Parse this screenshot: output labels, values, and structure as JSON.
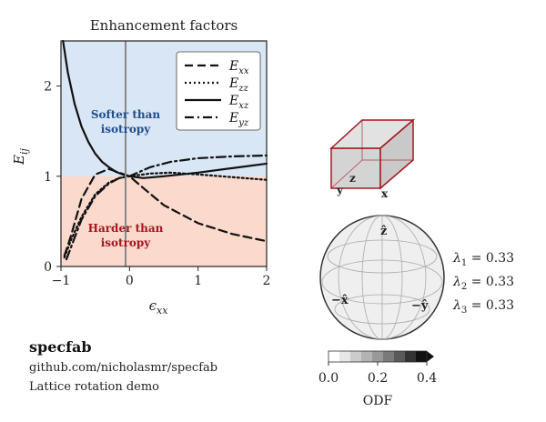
{
  "chart_data": {
    "type": "line",
    "title": "Enhancement factors",
    "xlabel": "ϵ_xx",
    "ylabel": "E_ij",
    "xlim": [
      -1,
      2
    ],
    "ylim": [
      0,
      2.5
    ],
    "xticks": [
      "−1",
      "0",
      "1",
      "2"
    ],
    "yticks": [
      "0",
      "1",
      "2"
    ],
    "legend_position": "top-right",
    "regions": [
      {
        "label": "Softer than isotropy",
        "y_range": [
          1,
          2.5
        ],
        "color": "#d9e6f5",
        "text_color": "#1f4e8c"
      },
      {
        "label": "Harder than isotropy",
        "y_range": [
          0,
          1
        ],
        "color": "#fbd9cc",
        "text_color": "#a31621"
      }
    ],
    "series": [
      {
        "name": "E_xx",
        "style": "dashed",
        "x": [
          -0.95,
          -0.85,
          -0.7,
          -0.5,
          -0.3,
          -0.15,
          0,
          0.2,
          0.5,
          1.0,
          1.5,
          2.0
        ],
        "y": [
          0.12,
          0.35,
          0.75,
          1.02,
          1.08,
          1.04,
          1.0,
          0.87,
          0.68,
          0.48,
          0.36,
          0.28
        ]
      },
      {
        "name": "E_zz",
        "style": "dotted",
        "x": [
          -0.95,
          -0.85,
          -0.7,
          -0.5,
          -0.3,
          -0.15,
          0,
          0.3,
          0.6,
          1.0,
          1.5,
          2.0
        ],
        "y": [
          0.1,
          0.3,
          0.55,
          0.8,
          0.93,
          0.98,
          1.0,
          1.03,
          1.04,
          1.02,
          0.99,
          0.96
        ]
      },
      {
        "name": "E_xz",
        "style": "solid",
        "x": [
          -0.97,
          -0.9,
          -0.8,
          -0.7,
          -0.6,
          -0.5,
          -0.4,
          -0.3,
          -0.2,
          -0.1,
          0,
          0.2,
          0.5,
          1.0,
          1.5,
          2.0
        ],
        "y": [
          2.5,
          2.15,
          1.8,
          1.55,
          1.38,
          1.25,
          1.16,
          1.1,
          1.05,
          1.02,
          1.0,
          0.98,
          1.0,
          1.04,
          1.09,
          1.14
        ]
      },
      {
        "name": "E_yz",
        "style": "dashdot",
        "x": [
          -0.92,
          -0.85,
          -0.7,
          -0.5,
          -0.3,
          -0.15,
          0,
          0.3,
          0.6,
          1.0,
          1.5,
          2.0
        ],
        "y": [
          0.08,
          0.22,
          0.52,
          0.78,
          0.92,
          0.98,
          1.0,
          1.1,
          1.16,
          1.2,
          1.22,
          1.23
        ]
      }
    ]
  },
  "legend": {
    "items": [
      {
        "base": "E",
        "sub": "xx"
      },
      {
        "base": "E",
        "sub": "zz"
      },
      {
        "base": "E",
        "sub": "xz"
      },
      {
        "base": "E",
        "sub": "yz"
      }
    ]
  },
  "cube": {
    "axes": {
      "x": "x",
      "y": "y",
      "z": "z"
    },
    "edge_color": "#a31621"
  },
  "sphere": {
    "labels": {
      "z": "ẑ",
      "x": "−x̂",
      "y": "−ŷ"
    }
  },
  "eigenvalues": [
    {
      "symbol": "λ",
      "sub": "1",
      "value": "= 0.33"
    },
    {
      "symbol": "λ",
      "sub": "2",
      "value": "= 0.33"
    },
    {
      "symbol": "λ",
      "sub": "3",
      "value": "= 0.33"
    }
  ],
  "colorbar": {
    "label": "ODF",
    "ticks": [
      "0.0",
      "0.2",
      "0.4"
    ],
    "range": [
      0,
      0.4
    ],
    "colors": [
      "#ffffff",
      "#e6e6e6",
      "#cccccc",
      "#b3b3b3",
      "#999999",
      "#7a7a7a",
      "#5a5a5a",
      "#333333",
      "#111111"
    ]
  },
  "info": {
    "name": "specfab",
    "url": "github.com/nicholasmr/specfab",
    "description": "Lattice rotation demo"
  }
}
